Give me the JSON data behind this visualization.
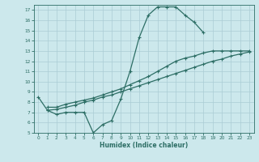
{
  "xlabel": "Humidex (Indice chaleur)",
  "bg_color": "#cce8ec",
  "grid_color": "#aaccd4",
  "line_color": "#2d6e65",
  "xlim": [
    -0.5,
    23.5
  ],
  "ylim": [
    5,
    17.5
  ],
  "xticks": [
    0,
    1,
    2,
    3,
    4,
    5,
    6,
    7,
    8,
    9,
    10,
    11,
    12,
    13,
    14,
    15,
    16,
    17,
    18,
    19,
    20,
    21,
    22,
    23
  ],
  "yticks": [
    5,
    6,
    7,
    8,
    9,
    10,
    11,
    12,
    13,
    14,
    15,
    16,
    17
  ],
  "line1_x": [
    0,
    1,
    2,
    3,
    4,
    5,
    6,
    7,
    8,
    9,
    10,
    11,
    12,
    13,
    14,
    15,
    16,
    17,
    18
  ],
  "line1_y": [
    8.5,
    7.2,
    6.8,
    7.0,
    7.0,
    7.0,
    5.0,
    5.8,
    6.2,
    8.3,
    11.0,
    14.3,
    16.5,
    17.3,
    17.3,
    17.3,
    16.5,
    15.8,
    14.8
  ],
  "line2_x": [
    1,
    2,
    3,
    4,
    5,
    6,
    7,
    8,
    9,
    10,
    11,
    12,
    13,
    14,
    15,
    16,
    17,
    18,
    19,
    20,
    21,
    22,
    23
  ],
  "line2_y": [
    7.5,
    7.5,
    7.8,
    8.0,
    8.2,
    8.4,
    8.7,
    9.0,
    9.3,
    9.7,
    10.1,
    10.5,
    11.0,
    11.5,
    12.0,
    12.3,
    12.5,
    12.8,
    13.0,
    13.0,
    13.0,
    13.0,
    13.0
  ],
  "line3_x": [
    1,
    2,
    3,
    4,
    5,
    6,
    7,
    8,
    9,
    10,
    11,
    12,
    13,
    14,
    15,
    16,
    17,
    18,
    19,
    20,
    21,
    22,
    23
  ],
  "line3_y": [
    7.2,
    7.3,
    7.5,
    7.7,
    8.0,
    8.2,
    8.5,
    8.7,
    9.0,
    9.3,
    9.6,
    9.9,
    10.2,
    10.5,
    10.8,
    11.1,
    11.4,
    11.7,
    12.0,
    12.2,
    12.5,
    12.7,
    12.9
  ]
}
